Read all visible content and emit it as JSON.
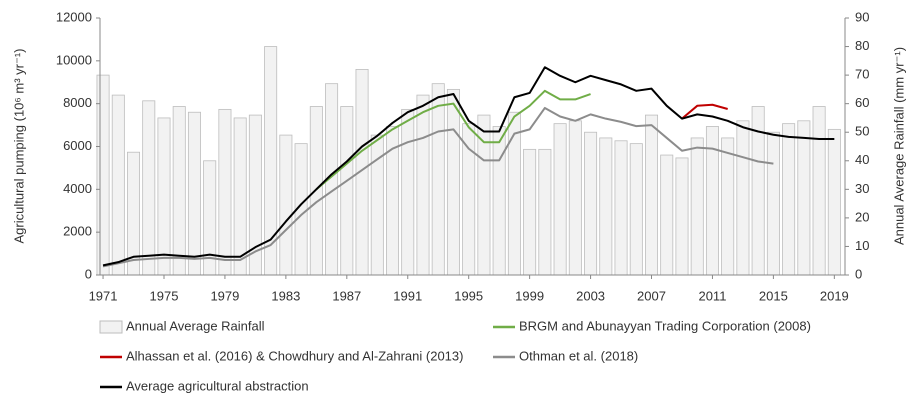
{
  "chart_data": {
    "type": "bar-line",
    "y_label": "Agricultural pumping (10⁶ m³ yr⁻¹)",
    "y2_label": "Annual Average Rainfall (mm yr⁻¹)",
    "x": [
      1971,
      1972,
      1973,
      1974,
      1975,
      1976,
      1977,
      1978,
      1979,
      1980,
      1981,
      1982,
      1983,
      1984,
      1985,
      1986,
      1987,
      1988,
      1989,
      1990,
      1991,
      1992,
      1993,
      1994,
      1995,
      1996,
      1997,
      1998,
      1999,
      2000,
      2001,
      2002,
      2003,
      2004,
      2005,
      2006,
      2007,
      2008,
      2009,
      2010,
      2011,
      2012,
      2013,
      2014,
      2015,
      2016,
      2017,
      2018,
      2019
    ],
    "xlim": [
      1970.8,
      2019.7
    ],
    "xticks": [
      1971,
      1975,
      1979,
      1983,
      1987,
      1991,
      1995,
      1999,
      2003,
      2007,
      2011,
      2015,
      2019
    ],
    "ylim": [
      0,
      12000
    ],
    "yticks": [
      0,
      2000,
      4000,
      6000,
      8000,
      10000,
      12000
    ],
    "y2lim": [
      0,
      90
    ],
    "y2ticks": [
      0,
      10,
      20,
      30,
      40,
      50,
      60,
      70,
      80,
      90
    ],
    "series": [
      {
        "name": "Annual Average Rainfall",
        "type": "bar",
        "axis": "y2",
        "color": "#f2f2f2",
        "values": [
          70,
          63,
          43,
          61,
          55,
          59,
          57,
          40,
          58,
          55,
          56,
          80,
          49,
          46,
          59,
          67,
          59,
          72,
          49,
          52,
          58,
          63,
          67,
          65,
          53,
          56,
          52,
          57,
          44,
          44,
          53,
          54,
          50,
          48,
          47,
          46,
          56,
          42,
          41,
          48,
          52,
          48,
          54,
          59,
          50,
          53,
          54,
          59,
          51
        ]
      },
      {
        "name": "BRGM and Abunayyan Trading Corporation (2008)",
        "type": "line",
        "color": "#70ad47",
        "values": [
          null,
          null,
          null,
          null,
          null,
          null,
          null,
          null,
          null,
          null,
          null,
          null,
          null,
          null,
          4000,
          4600,
          5200,
          5800,
          6300,
          6800,
          7200,
          7600,
          7900,
          8000,
          6900,
          6200,
          6200,
          7400,
          7900,
          8600,
          8200,
          8200,
          8450,
          null,
          null,
          null,
          null,
          null,
          null,
          null,
          null,
          null,
          null,
          null,
          null,
          null,
          null,
          null,
          null
        ]
      },
      {
        "name": "Alhassan et al. (2016) & Chowdhury and Al-Zahrani (2013)",
        "type": "line",
        "color": "#c00000",
        "values": [
          null,
          null,
          null,
          null,
          null,
          null,
          null,
          null,
          null,
          null,
          null,
          null,
          null,
          null,
          null,
          null,
          null,
          null,
          null,
          null,
          null,
          null,
          null,
          null,
          null,
          null,
          null,
          null,
          null,
          null,
          null,
          null,
          null,
          null,
          null,
          null,
          null,
          null,
          7300,
          7900,
          7950,
          7750,
          null,
          null,
          null,
          null,
          null,
          null,
          null
        ]
      },
      {
        "name": "Othman et al. (2018)",
        "type": "line",
        "color": "#8c8c8c",
        "values": [
          400,
          550,
          700,
          750,
          800,
          800,
          750,
          800,
          700,
          700,
          1100,
          1400,
          2100,
          2800,
          3400,
          3900,
          4400,
          4900,
          5400,
          5900,
          6200,
          6400,
          6700,
          6800,
          5900,
          5350,
          5350,
          6600,
          6800,
          7800,
          7400,
          7200,
          7500,
          7300,
          7150,
          6950,
          7000,
          6400,
          5800,
          5950,
          5900,
          5700,
          5500,
          5300,
          5200,
          null,
          null,
          null,
          null
        ]
      },
      {
        "name": "Average agricultural abstraction",
        "type": "line",
        "color": "#000000",
        "values": [
          450,
          600,
          850,
          900,
          950,
          900,
          850,
          950,
          850,
          850,
          1300,
          1650,
          2500,
          3300,
          4000,
          4700,
          5300,
          6000,
          6500,
          7100,
          7600,
          7900,
          8300,
          8450,
          7200,
          6700,
          6700,
          8300,
          8500,
          9700,
          9300,
          9000,
          9300,
          9100,
          8900,
          8600,
          8700,
          7900,
          7300,
          7500,
          7400,
          7200,
          6900,
          6700,
          6550,
          6450,
          6400,
          6350,
          6350
        ]
      }
    ]
  }
}
